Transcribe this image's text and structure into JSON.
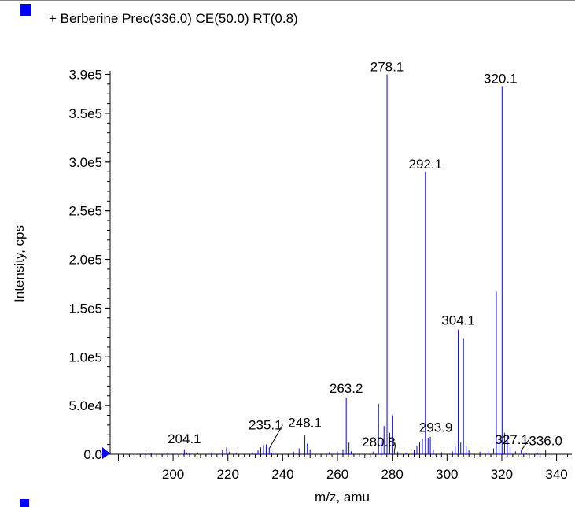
{
  "chart_data": {
    "type": "bar",
    "title": "+ Berberine Prec(336.0) CE(50.0) RT(0.8)",
    "xlabel": "m/z, amu",
    "ylabel": "Intensity, cps",
    "xlim": [
      177,
      345
    ],
    "ylim": [
      0,
      392000
    ],
    "x_ticks": [
      {
        "value": 200,
        "label": "200"
      },
      {
        "value": 220,
        "label": "220"
      },
      {
        "value": 240,
        "label": "240"
      },
      {
        "value": 260,
        "label": "260"
      },
      {
        "value": 280,
        "label": "280"
      },
      {
        "value": 300,
        "label": "300"
      },
      {
        "value": 320,
        "label": "320"
      },
      {
        "value": 340,
        "label": "340"
      }
    ],
    "y_ticks": [
      {
        "value": 0,
        "label": "0.0"
      },
      {
        "value": 50000,
        "label": "5.0e4"
      },
      {
        "value": 100000,
        "label": "1.0e5"
      },
      {
        "value": 150000,
        "label": "1.5e5"
      },
      {
        "value": 200000,
        "label": "2.0e5"
      },
      {
        "value": 250000,
        "label": "2.5e5"
      },
      {
        "value": 300000,
        "label": "3.0e5"
      },
      {
        "value": 350000,
        "label": "3.5e5"
      },
      {
        "value": 390000,
        "label": "3.9e5"
      }
    ],
    "series": [
      {
        "color": "#0000ff",
        "points": [
          {
            "x": 190,
            "y": 1500
          },
          {
            "x": 192,
            "y": 1200
          },
          {
            "x": 198,
            "y": 1500
          },
          {
            "x": 204.1,
            "y": 5000
          },
          {
            "x": 205,
            "y": 1800
          },
          {
            "x": 206,
            "y": 1500
          },
          {
            "x": 209,
            "y": 1200
          },
          {
            "x": 214,
            "y": 1500
          },
          {
            "x": 218,
            "y": 4000
          },
          {
            "x": 219.5,
            "y": 7000
          },
          {
            "x": 220.5,
            "y": 2500
          },
          {
            "x": 223,
            "y": 1500
          },
          {
            "x": 229,
            "y": 1500
          },
          {
            "x": 231,
            "y": 4000
          },
          {
            "x": 232,
            "y": 7000
          },
          {
            "x": 233,
            "y": 9500
          },
          {
            "x": 234,
            "y": 10000
          },
          {
            "x": 235.1,
            "y": 6000
          },
          {
            "x": 236,
            "y": 1500
          },
          {
            "x": 244,
            "y": 2500
          },
          {
            "x": 246,
            "y": 6000
          },
          {
            "x": 248.1,
            "y": 20000
          },
          {
            "x": 249,
            "y": 11000
          },
          {
            "x": 250,
            "y": 5000
          },
          {
            "x": 257,
            "y": 2000
          },
          {
            "x": 260,
            "y": 2500
          },
          {
            "x": 262,
            "y": 5000
          },
          {
            "x": 263.2,
            "y": 58000
          },
          {
            "x": 264.2,
            "y": 12000
          },
          {
            "x": 265,
            "y": 3000
          },
          {
            "x": 273,
            "y": 2500
          },
          {
            "x": 275,
            "y": 52000
          },
          {
            "x": 276,
            "y": 15000
          },
          {
            "x": 277,
            "y": 29000
          },
          {
            "x": 278.1,
            "y": 390000
          },
          {
            "x": 279.1,
            "y": 22000
          },
          {
            "x": 280,
            "y": 40000
          },
          {
            "x": 280.8,
            "y": 4000
          },
          {
            "x": 282,
            "y": 2500
          },
          {
            "x": 285,
            "y": 1500
          },
          {
            "x": 288,
            "y": 4000
          },
          {
            "x": 289,
            "y": 9000
          },
          {
            "x": 290,
            "y": 12000
          },
          {
            "x": 291,
            "y": 16000
          },
          {
            "x": 292.1,
            "y": 290000
          },
          {
            "x": 293.1,
            "y": 17000
          },
          {
            "x": 293.9,
            "y": 18000
          },
          {
            "x": 295,
            "y": 5000
          },
          {
            "x": 298,
            "y": 2000
          },
          {
            "x": 302,
            "y": 3000
          },
          {
            "x": 303,
            "y": 8000
          },
          {
            "x": 304.1,
            "y": 128000
          },
          {
            "x": 305,
            "y": 12000
          },
          {
            "x": 306,
            "y": 119000
          },
          {
            "x": 307,
            "y": 9000
          },
          {
            "x": 308,
            "y": 4000
          },
          {
            "x": 312,
            "y": 2500
          },
          {
            "x": 315,
            "y": 3500
          },
          {
            "x": 317,
            "y": 6000
          },
          {
            "x": 318,
            "y": 167000
          },
          {
            "x": 319,
            "y": 15000
          },
          {
            "x": 320.1,
            "y": 378000
          },
          {
            "x": 321,
            "y": 22000
          },
          {
            "x": 322,
            "y": 20000
          },
          {
            "x": 323,
            "y": 7000
          },
          {
            "x": 325,
            "y": 3000
          },
          {
            "x": 327.1,
            "y": 4000
          },
          {
            "x": 329,
            "y": 1500
          },
          {
            "x": 333,
            "y": 1500
          },
          {
            "x": 336.0,
            "y": 4500
          }
        ]
      }
    ],
    "annotations": [
      {
        "text": "204.1",
        "x": 204.1,
        "y": 5000,
        "dx": 0,
        "dy": -8,
        "leader": false
      },
      {
        "text": "235.1",
        "x": 235.1,
        "y": 6000,
        "dx": -5,
        "dy": -24,
        "leader": true
      },
      {
        "text": "248.1",
        "x": 248.1,
        "y": 20000,
        "dx": 0,
        "dy": -10,
        "leader": false
      },
      {
        "text": "263.2",
        "x": 263.2,
        "y": 58000,
        "dx": 0,
        "dy": -6,
        "leader": false
      },
      {
        "text": "278.1",
        "x": 278.1,
        "y": 390000,
        "dx": 0,
        "dy": -4,
        "leader": false
      },
      {
        "text": "280.8",
        "x": 280.8,
        "y": 4000,
        "dx": -20,
        "dy": -5,
        "leader": true
      },
      {
        "text": "292.1",
        "x": 292.1,
        "y": 290000,
        "dx": 0,
        "dy": -4,
        "leader": false
      },
      {
        "text": "293.9",
        "x": 293.9,
        "y": 18000,
        "dx": 7,
        "dy": -6,
        "leader": false
      },
      {
        "text": "304.1",
        "x": 304.1,
        "y": 128000,
        "dx": 0,
        "dy": -6,
        "leader": false
      },
      {
        "text": "320.1",
        "x": 320.1,
        "y": 378000,
        "dx": -2,
        "dy": -4,
        "leader": false
      },
      {
        "text": "327.1",
        "x": 327.1,
        "y": 4000,
        "dx": -12,
        "dy": -8,
        "leader": true
      },
      {
        "text": "336.0",
        "x": 336.0,
        "y": 4500,
        "dx": 0,
        "dy": -6,
        "leader": false
      }
    ],
    "legend": {
      "placement": "top-left",
      "color": "#0000ff"
    },
    "grid": false
  }
}
